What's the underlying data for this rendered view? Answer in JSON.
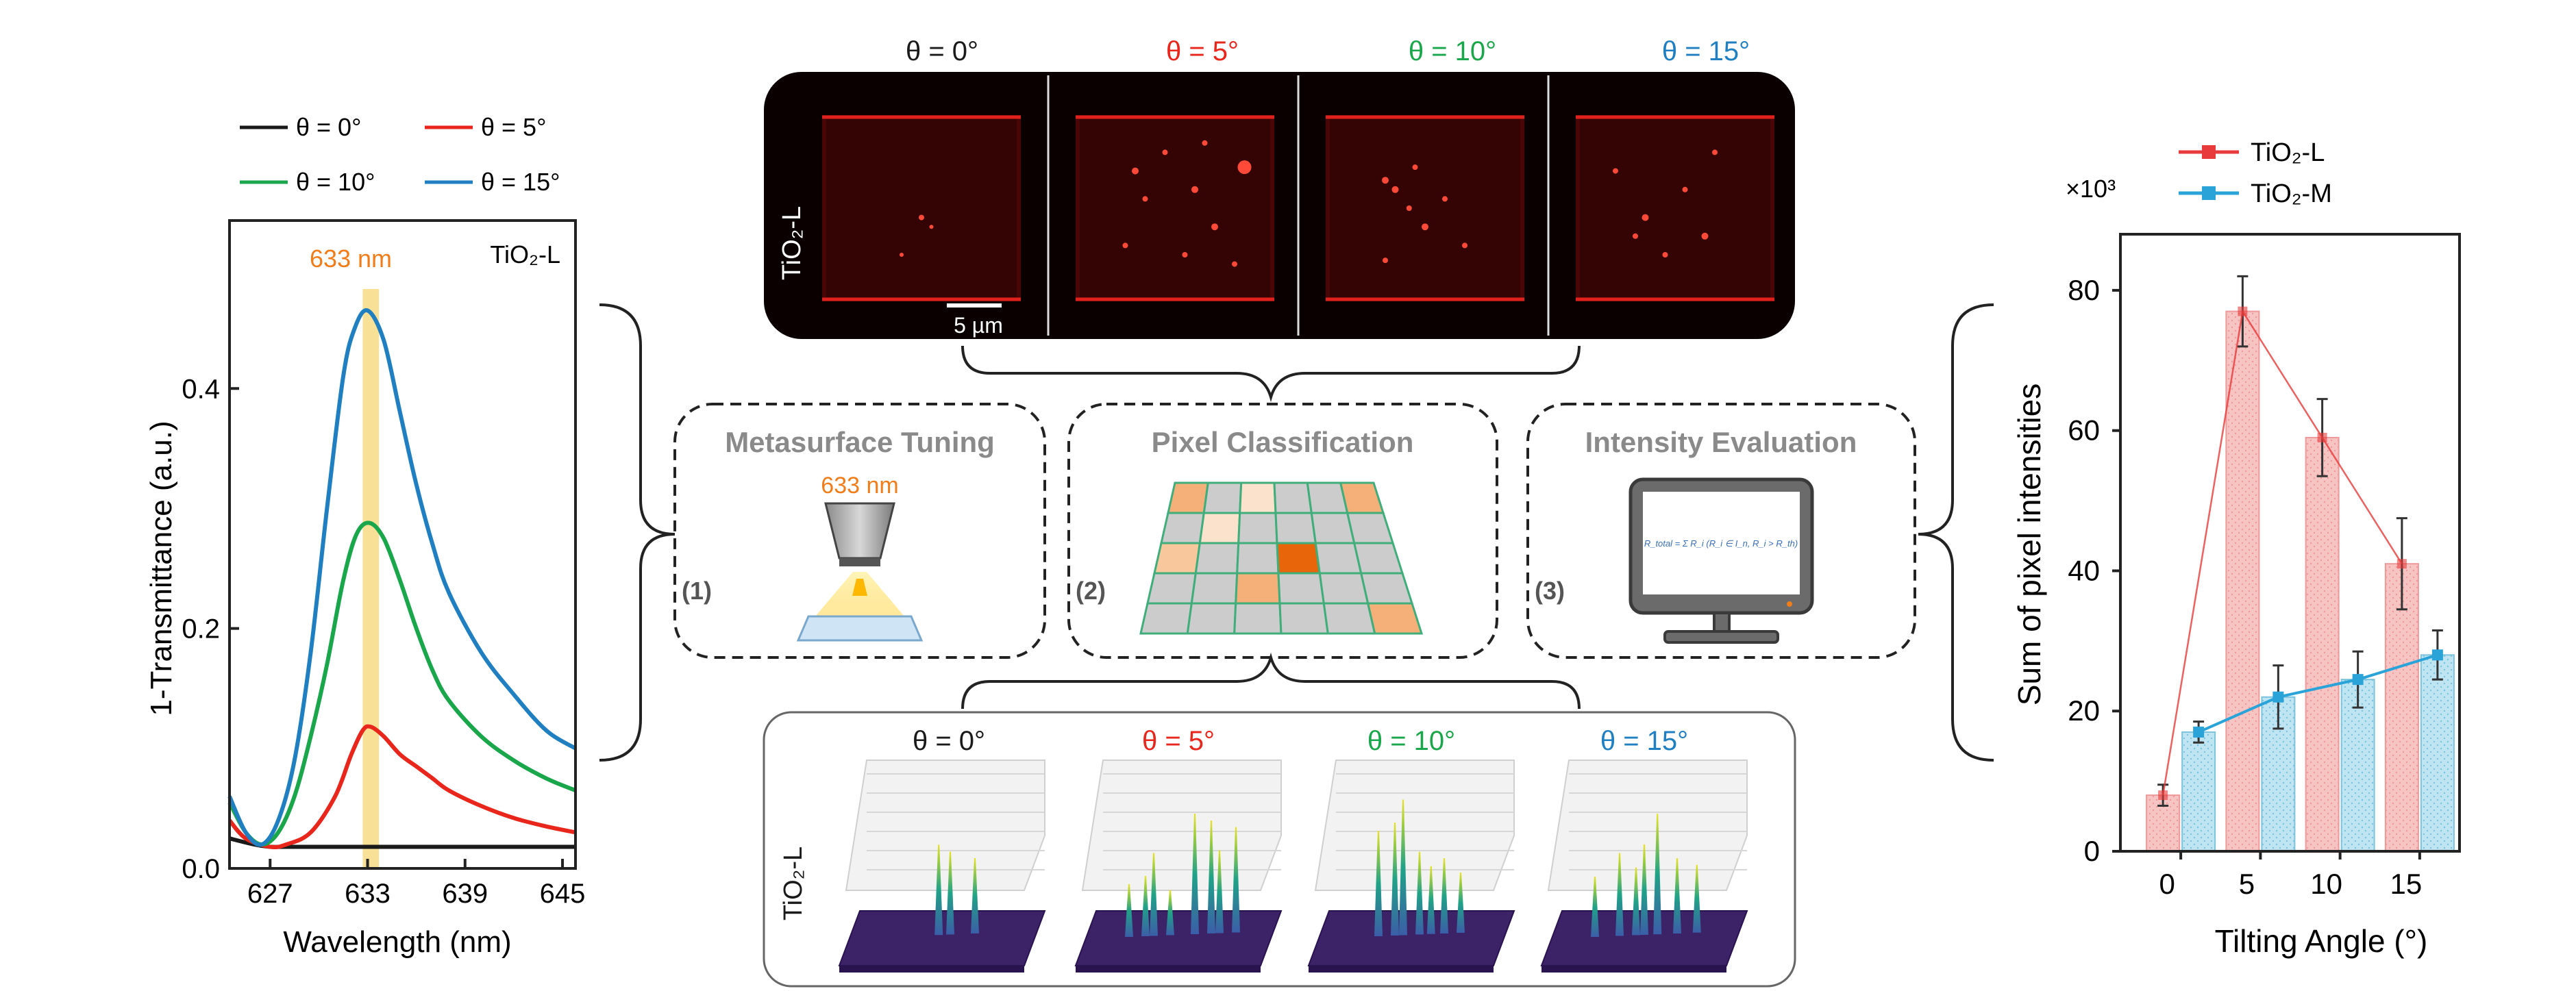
{
  "colors": {
    "t0": "#1a1a1a",
    "t5": "#e8261c",
    "t10": "#1aa64a",
    "t15": "#1f7fc0",
    "highlight": "#f5d36b",
    "orange_text": "#f07d1a",
    "tio2l": "#e83a3a",
    "tio2m": "#2aa3d8",
    "bar_l_fill": "#f7c4c4",
    "bar_m_fill": "#bfe4f2",
    "grid_green": "#3fae7a",
    "surface_purple": "#4a2a7a"
  },
  "left_chart": {
    "legend": [
      "θ = 0°",
      "θ = 5°",
      "θ = 10°",
      "θ = 15°"
    ],
    "corner_label": "TiO₂-L",
    "highlight_label": "633 nm",
    "ylabel": "1-Transmittance (a.u.)",
    "xlabel": "Wavelength (nm)",
    "xticks": [
      "627",
      "633",
      "639",
      "645"
    ],
    "yticks": [
      "0.0",
      "0.2",
      "0.4"
    ]
  },
  "chart_data": [
    {
      "type": "line",
      "xlabel": "Wavelength (nm)",
      "ylabel": "1-Transmittance (a.u.)",
      "xlim": [
        624.5,
        645.8
      ],
      "ylim": [
        0,
        0.54
      ],
      "highlight_band": [
        632.7,
        633.7
      ],
      "series": [
        {
          "name": "θ = 0°",
          "x": [
            624.5,
            626,
            627,
            628,
            630,
            632,
            633,
            634,
            636,
            638,
            640,
            642,
            644,
            645.8
          ],
          "y": [
            0.025,
            0.02,
            0.018,
            0.018,
            0.018,
            0.018,
            0.018,
            0.018,
            0.018,
            0.018,
            0.018,
            0.018,
            0.018,
            0.018
          ]
        },
        {
          "name": "θ = 5°",
          "x": [
            624.5,
            625.5,
            627,
            628,
            629.5,
            631,
            632,
            632.7,
            633.2,
            634,
            635,
            636,
            637,
            638,
            640,
            642,
            644,
            645.8
          ],
          "y": [
            0.04,
            0.025,
            0.018,
            0.02,
            0.03,
            0.06,
            0.095,
            0.115,
            0.118,
            0.11,
            0.095,
            0.085,
            0.075,
            0.065,
            0.052,
            0.042,
            0.035,
            0.03
          ]
        },
        {
          "name": "θ = 10°",
          "x": [
            624.5,
            625.5,
            626.5,
            627.5,
            628.5,
            629.5,
            630.5,
            631.5,
            632.3,
            633.1,
            634,
            635,
            636,
            637,
            638,
            640,
            642,
            644,
            645.8
          ],
          "y": [
            0.055,
            0.03,
            0.02,
            0.03,
            0.06,
            0.11,
            0.17,
            0.24,
            0.278,
            0.288,
            0.275,
            0.24,
            0.2,
            0.165,
            0.14,
            0.11,
            0.09,
            0.075,
            0.065
          ]
        },
        {
          "name": "θ = 15°",
          "x": [
            624.5,
            625.5,
            626.5,
            627.5,
            628.5,
            629.5,
            630.5,
            631.5,
            632.2,
            633,
            634,
            635,
            636,
            637,
            638,
            640,
            642,
            644,
            645.8
          ],
          "y": [
            0.06,
            0.03,
            0.02,
            0.04,
            0.09,
            0.18,
            0.3,
            0.41,
            0.45,
            0.465,
            0.44,
            0.38,
            0.32,
            0.27,
            0.23,
            0.18,
            0.145,
            0.115,
            0.1
          ]
        }
      ]
    },
    {
      "type": "bar",
      "xlabel": "Tilting Angle (°)",
      "ylabel": "Sum of pixel intensities",
      "multiplier": "×10³",
      "categories": [
        "0",
        "5",
        "10",
        "15"
      ],
      "ylim": [
        0,
        88
      ],
      "series": [
        {
          "name": "TiO₂-L",
          "values": [
            8,
            77,
            59,
            41
          ],
          "errors": [
            1.5,
            5,
            5.5,
            6.5
          ]
        },
        {
          "name": "TiO₂-M",
          "values": [
            17,
            22,
            24.5,
            28
          ],
          "errors": [
            1.5,
            4.5,
            4,
            3.5
          ]
        }
      ]
    }
  ],
  "right_chart": {
    "legend": [
      "TiO₂-L",
      "TiO₂-M"
    ],
    "multiplier": "×10³",
    "ylabel": "Sum of pixel intensities",
    "xlabel": "Tilting Angle (°)",
    "xticks": [
      "0",
      "5",
      "10",
      "15"
    ],
    "yticks": [
      "0",
      "20",
      "40",
      "60",
      "80"
    ]
  },
  "micro_panel": {
    "angle_labels": [
      "θ = 0°",
      "θ = 5°",
      "θ = 10°",
      "θ = 15°"
    ],
    "side_label": "TiO₂-L",
    "scalebar_label": "5 µm"
  },
  "steps": [
    {
      "number": "(1)",
      "title": "Metasurface Tuning",
      "sub": "633 nm"
    },
    {
      "number": "(2)",
      "title": "Pixel Classification"
    },
    {
      "number": "(3)",
      "title": "Intensity Evaluation",
      "formula": "R_total = Σ R_i (R_i ∈ I_n, R_i > R_th)"
    }
  ],
  "surface_panel": {
    "angle_labels": [
      "θ = 0°",
      "θ = 5°",
      "θ = 10°",
      "θ = 15°"
    ],
    "side_label": "TiO₂-L"
  }
}
